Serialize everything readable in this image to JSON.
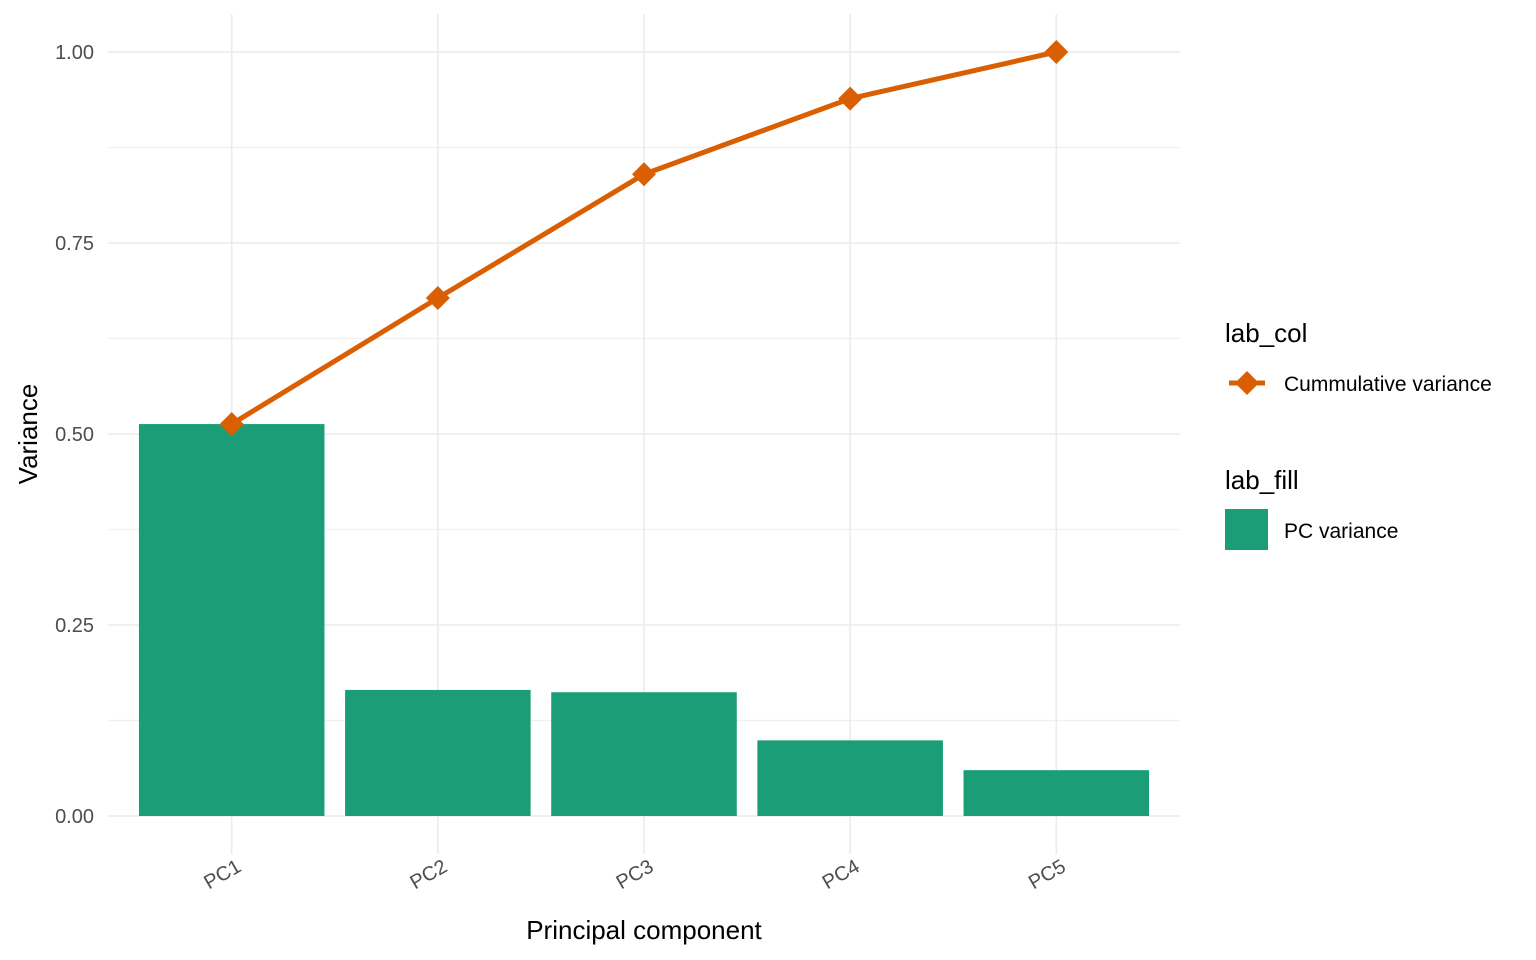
{
  "chart_data": {
    "type": "bar",
    "title": "",
    "xlabel": "Principal component",
    "ylabel": "Variance",
    "categories": [
      "PC1",
      "PC2",
      "PC3",
      "PC4",
      "PC5"
    ],
    "ylim": [
      0,
      1.05
    ],
    "yticks": [
      "0.00",
      "0.25",
      "0.50",
      "0.75",
      "1.00"
    ],
    "grid": true,
    "legend_position": "right",
    "series": [
      {
        "name": "PC variance",
        "kind": "bar",
        "color": "#1b9e77",
        "values": [
          0.513,
          0.165,
          0.162,
          0.099,
          0.06
        ]
      },
      {
        "name": "Cummulative variance",
        "kind": "line",
        "color": "#d95f02",
        "marker": "diamond",
        "values": [
          0.513,
          0.678,
          0.84,
          0.939,
          1.0
        ]
      }
    ],
    "legend": [
      {
        "title": "lab_col",
        "entries": [
          "Cummulative variance"
        ]
      },
      {
        "title": "lab_fill",
        "entries": [
          "PC variance"
        ]
      }
    ]
  }
}
